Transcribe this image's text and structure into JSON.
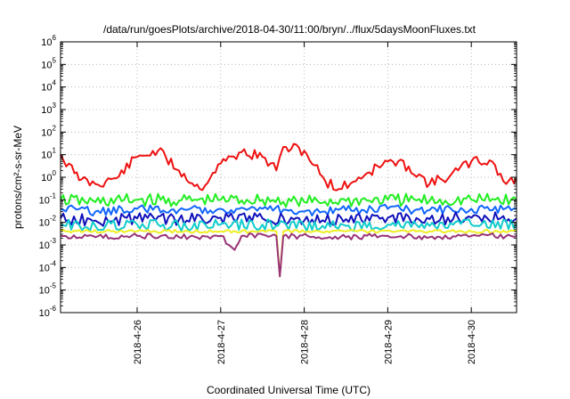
{
  "chart_data": {
    "type": "line",
    "title": "/data/run/goesPlots/archive/2018-04-30/11:00/bryn/../flux/5daysMoonFluxes.txt",
    "xlabel": "Coordinated Universal Time (UTC)",
    "ylabel": "protons/cm²-s-sr-MeV",
    "y_scale": "log",
    "ylim_exponent": [
      -6,
      6
    ],
    "y_ticks": [
      {
        "base": "10",
        "exp": "-6",
        "value": -6
      },
      {
        "base": "10",
        "exp": "-5",
        "value": -5
      },
      {
        "base": "10",
        "exp": "-4",
        "value": -4
      },
      {
        "base": "10",
        "exp": "-3",
        "value": -3
      },
      {
        "base": "10",
        "exp": "-2",
        "value": -2
      },
      {
        "base": "10",
        "exp": "-1",
        "value": -1
      },
      {
        "base": "10",
        "exp": "0",
        "value": 0
      },
      {
        "base": "10",
        "exp": "1",
        "value": 1
      },
      {
        "base": "10",
        "exp": "2",
        "value": 2
      },
      {
        "base": "10",
        "exp": "3",
        "value": 3
      },
      {
        "base": "10",
        "exp": "4",
        "value": 4
      },
      {
        "base": "10",
        "exp": "5",
        "value": 5
      },
      {
        "base": "10",
        "exp": "6",
        "value": 6
      }
    ],
    "xlim": [
      "2018-04-25 02:00",
      "2018-04-30 13:00"
    ],
    "x_ticks": [
      {
        "label": "2018-4-26",
        "value": "2018-04-26 00:00"
      },
      {
        "label": "2018-4-27",
        "value": "2018-04-27 00:00"
      },
      {
        "label": "2018-4-28",
        "value": "2018-04-28 00:00"
      },
      {
        "label": "2018-4-29",
        "value": "2018-04-29 00:00"
      },
      {
        "label": "2018-4-30",
        "value": "2018-04-30 00:00"
      }
    ],
    "grid": true,
    "series": [
      {
        "color": "#ee1111",
        "points": [
          [
            "2018-04-25 02:00",
            10
          ],
          [
            "2018-04-25 06:00",
            1.5
          ],
          [
            "2018-04-25 08:00",
            0.8
          ],
          [
            "2018-04-25 12:00",
            0.5
          ],
          [
            "2018-04-25 18:00",
            0.9
          ],
          [
            "2018-04-26 00:00",
            8
          ],
          [
            "2018-04-26 06:00",
            15
          ],
          [
            "2018-04-26 12:00",
            2
          ],
          [
            "2018-04-26 18:00",
            0.3
          ],
          [
            "2018-04-27 00:00",
            4
          ],
          [
            "2018-04-27 06:00",
            13
          ],
          [
            "2018-04-27 12:00",
            8
          ],
          [
            "2018-04-27 16:00",
            2
          ],
          [
            "2018-04-27 17:00",
            8
          ],
          [
            "2018-04-27 18:00",
            22
          ],
          [
            "2018-04-28 00:00",
            15
          ],
          [
            "2018-04-28 06:00",
            0.7
          ],
          [
            "2018-04-28 10:00",
            0.3
          ],
          [
            "2018-04-28 18:00",
            1.5
          ],
          [
            "2018-04-29 00:00",
            5
          ],
          [
            "2018-04-29 06:00",
            3
          ],
          [
            "2018-04-29 12:00",
            0.5
          ],
          [
            "2018-04-29 18:00",
            1.2
          ],
          [
            "2018-04-30 00:00",
            5
          ],
          [
            "2018-04-30 06:00",
            5
          ],
          [
            "2018-04-30 10:00",
            0.5
          ],
          [
            "2018-04-30 13:00",
            0.9
          ]
        ]
      },
      {
        "color": "#22ee22",
        "points": [
          [
            "2018-04-25 02:00",
            0.1
          ],
          [
            "2018-04-25 12:00",
            0.08
          ],
          [
            "2018-04-26 00:00",
            0.1
          ],
          [
            "2018-04-26 12:00",
            0.09
          ],
          [
            "2018-04-27 00:00",
            0.1
          ],
          [
            "2018-04-27 12:00",
            0.1
          ],
          [
            "2018-04-28 00:00",
            0.08
          ],
          [
            "2018-04-28 12:00",
            0.09
          ],
          [
            "2018-04-29 00:00",
            0.1
          ],
          [
            "2018-04-29 12:00",
            0.09
          ],
          [
            "2018-04-30 00:00",
            0.1
          ],
          [
            "2018-04-30 13:00",
            0.1
          ]
        ]
      },
      {
        "color": "#1166ff",
        "points": [
          [
            "2018-04-25 02:00",
            0.04
          ],
          [
            "2018-04-25 12:00",
            0.03
          ],
          [
            "2018-04-26 00:00",
            0.04
          ],
          [
            "2018-04-26 12:00",
            0.035
          ],
          [
            "2018-04-27 00:00",
            0.04
          ],
          [
            "2018-04-27 12:00",
            0.04
          ],
          [
            "2018-04-28 00:00",
            0.03
          ],
          [
            "2018-04-28 12:00",
            0.035
          ],
          [
            "2018-04-29 00:00",
            0.04
          ],
          [
            "2018-04-29 12:00",
            0.035
          ],
          [
            "2018-04-30 00:00",
            0.04
          ],
          [
            "2018-04-30 13:00",
            0.04
          ]
        ]
      },
      {
        "color": "#1111bb",
        "points": [
          [
            "2018-04-25 02:00",
            0.015
          ],
          [
            "2018-04-25 12:00",
            0.012
          ],
          [
            "2018-04-26 00:00",
            0.015
          ],
          [
            "2018-04-26 12:00",
            0.013
          ],
          [
            "2018-04-27 00:00",
            0.016
          ],
          [
            "2018-04-27 12:00",
            0.015
          ],
          [
            "2018-04-28 00:00",
            0.012
          ],
          [
            "2018-04-28 12:00",
            0.014
          ],
          [
            "2018-04-29 00:00",
            0.016
          ],
          [
            "2018-04-29 12:00",
            0.014
          ],
          [
            "2018-04-30 00:00",
            0.016
          ],
          [
            "2018-04-30 13:00",
            0.015
          ]
        ]
      },
      {
        "color": "#11cccc",
        "points": [
          [
            "2018-04-25 02:00",
            0.008
          ],
          [
            "2018-04-25 12:00",
            0.007
          ],
          [
            "2018-04-26 00:00",
            0.008
          ],
          [
            "2018-04-26 12:00",
            0.007
          ],
          [
            "2018-04-27 00:00",
            0.008
          ],
          [
            "2018-04-27 12:00",
            0.008
          ],
          [
            "2018-04-28 00:00",
            0.007
          ],
          [
            "2018-04-28 12:00",
            0.007
          ],
          [
            "2018-04-29 00:00",
            0.008
          ],
          [
            "2018-04-29 12:00",
            0.007
          ],
          [
            "2018-04-30 00:00",
            0.008
          ],
          [
            "2018-04-30 13:00",
            0.008
          ]
        ]
      },
      {
        "color": "#eeee22",
        "points": [
          [
            "2018-04-25 02:00",
            0.004
          ],
          [
            "2018-04-26 00:00",
            0.004
          ],
          [
            "2018-04-27 00:00",
            0.004
          ],
          [
            "2018-04-27 16:00",
            0.004
          ],
          [
            "2018-04-27 17:00",
            4e-05
          ],
          [
            "2018-04-27 18:00",
            0.004
          ],
          [
            "2018-04-28 12:00",
            0.004
          ],
          [
            "2018-04-29 12:00",
            0.004
          ],
          [
            "2018-04-30 13:00",
            0.004
          ]
        ]
      },
      {
        "color": "#993377",
        "points": [
          [
            "2018-04-25 02:00",
            0.0025
          ],
          [
            "2018-04-25 12:00",
            0.0022
          ],
          [
            "2018-04-26 00:00",
            0.0025
          ],
          [
            "2018-04-26 12:00",
            0.0022
          ],
          [
            "2018-04-27 00:00",
            0.0025
          ],
          [
            "2018-04-27 04:00",
            0.0006
          ],
          [
            "2018-04-27 06:00",
            0.0025
          ],
          [
            "2018-04-27 16:00",
            0.0025
          ],
          [
            "2018-04-27 17:00",
            4e-05
          ],
          [
            "2018-04-27 18:00",
            0.0025
          ],
          [
            "2018-04-28 12:00",
            0.0022
          ],
          [
            "2018-04-29 00:00",
            0.0025
          ],
          [
            "2018-04-29 12:00",
            0.0022
          ],
          [
            "2018-04-30 00:00",
            0.0025
          ],
          [
            "2018-04-30 13:00",
            0.0025
          ]
        ]
      }
    ]
  }
}
